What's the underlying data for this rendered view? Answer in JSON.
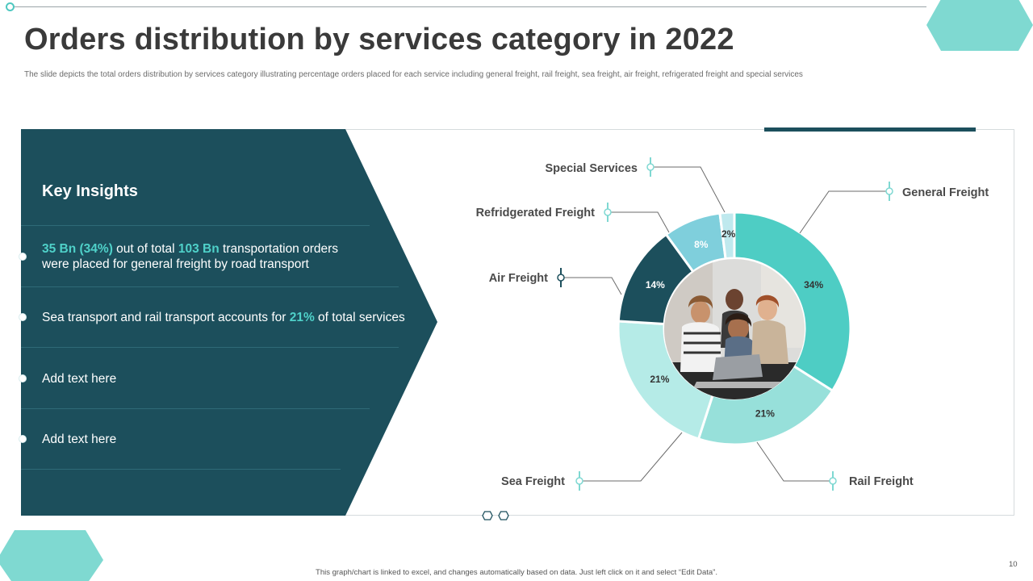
{
  "slide": {
    "title": "Orders distribution by services category in 2022",
    "subtitle": "The slide depicts the total orders distribution by services category illustrating percentage orders placed for each service including general freight, rail freight, sea freight, air freight, refrigerated freight and special services",
    "footer_note": "This graph/chart is linked to excel, and changes automatically based on data. Just left click on it and select “Edit Data”.",
    "page_number": "10"
  },
  "insights": {
    "title": "Key Insights",
    "items": [
      {
        "line1_hl1": "35 Bn (34%)",
        "line1_mid": " out of total ",
        "line1_hl2": "103 Bn",
        "line1_end": " transportation orders",
        "line2": "were placed for general freight by road transport"
      },
      {
        "pre": "Sea transport and rail transport accounts for ",
        "hl": "21%",
        "post": " of total services"
      },
      {
        "text": "Add text here"
      },
      {
        "text": "Add text here"
      }
    ]
  },
  "colors": {
    "dark_teal": "#1c4f5c",
    "accent_teal": "#4fd1c9",
    "light_teal": "#7fd8d2",
    "hex_teal": "#7fd9d1"
  },
  "chart_data": {
    "type": "pie",
    "subtype": "donut",
    "unit": "%",
    "start_angle_deg": 0,
    "direction": "clockwise",
    "slices": [
      {
        "label": "General Freight",
        "value": 34,
        "data_label": "34%",
        "color": "#4ecdc4",
        "label_color": "#333333"
      },
      {
        "label": "Rail Freight",
        "value": 21,
        "data_label": "21%",
        "color": "#97e0da",
        "label_color": "#333333"
      },
      {
        "label": "Sea Freight",
        "value": 21,
        "data_label": "21%",
        "color": "#b5ebe7",
        "label_color": "#333333"
      },
      {
        "label": "Air Freight",
        "value": 14,
        "data_label": "14%",
        "color": "#1c4f5c",
        "label_color": "#ffffff"
      },
      {
        "label": "Refridgerated Freight",
        "value": 8,
        "data_label": "8%",
        "color": "#7fcfdc",
        "label_color": "#ffffff"
      },
      {
        "label": "Special Services",
        "value": 2,
        "data_label": "2%",
        "color": "#bfe9ee",
        "label_color": "#333333"
      }
    ]
  }
}
